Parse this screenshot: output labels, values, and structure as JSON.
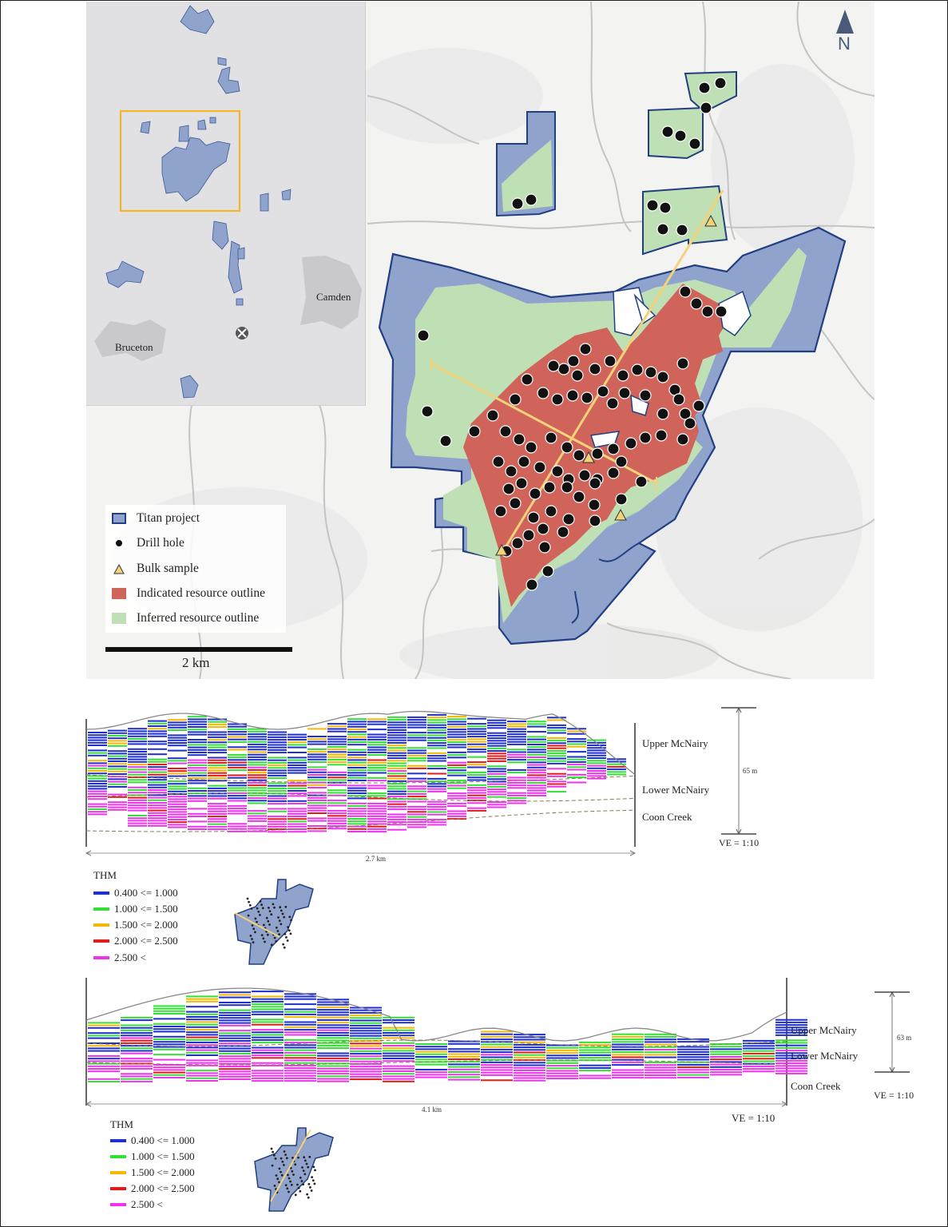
{
  "map": {
    "north_label": "N",
    "scale_label": "2 km",
    "inset": {
      "place_labels": [
        "Camden",
        "Bruceton"
      ]
    },
    "legend": [
      {
        "label": "Titan project",
        "symbol": "blue-polygon",
        "color": "#8fa3cc"
      },
      {
        "label": "Drill hole",
        "symbol": "black-dot",
        "color": "#111111"
      },
      {
        "label": "Bulk sample",
        "symbol": "yellow-triangle",
        "color": "#f2d27a"
      },
      {
        "label": "Indicated resource outline",
        "symbol": "red-polygon",
        "color": "#d0645a"
      },
      {
        "label": "Inferred resource outline",
        "symbol": "green-polygon",
        "color": "#bfe0b5"
      }
    ]
  },
  "sections": [
    {
      "layers": [
        "Upper McNairy",
        "Lower McNairy",
        "Coon Creek"
      ],
      "vertical_scale": "65 m",
      "ve_label": "VE = 1:10",
      "length_label": "2.7 km",
      "thm_title": "THM"
    },
    {
      "layers": [
        "Upper McNairy",
        "Lower McNairy",
        "Coon Creek"
      ],
      "vertical_scale": "63 m",
      "ve_label": "VE = 1:10",
      "ve_label_bottom": "VE = 1:10",
      "length_label": "4.1 km",
      "thm_title": "THM"
    }
  ],
  "thm_legend": [
    {
      "label": "0.400 <= 1.000",
      "color": "#1f2fd0"
    },
    {
      "label": "1.000 <= 1.500",
      "color": "#33e033"
    },
    {
      "label": "1.500 <= 2.000",
      "color": "#f5b800"
    },
    {
      "label": "2.000 <= 2.500",
      "color": "#e31a1a"
    },
    {
      "label": "2.500 <",
      "color": "#ee33ee"
    }
  ]
}
